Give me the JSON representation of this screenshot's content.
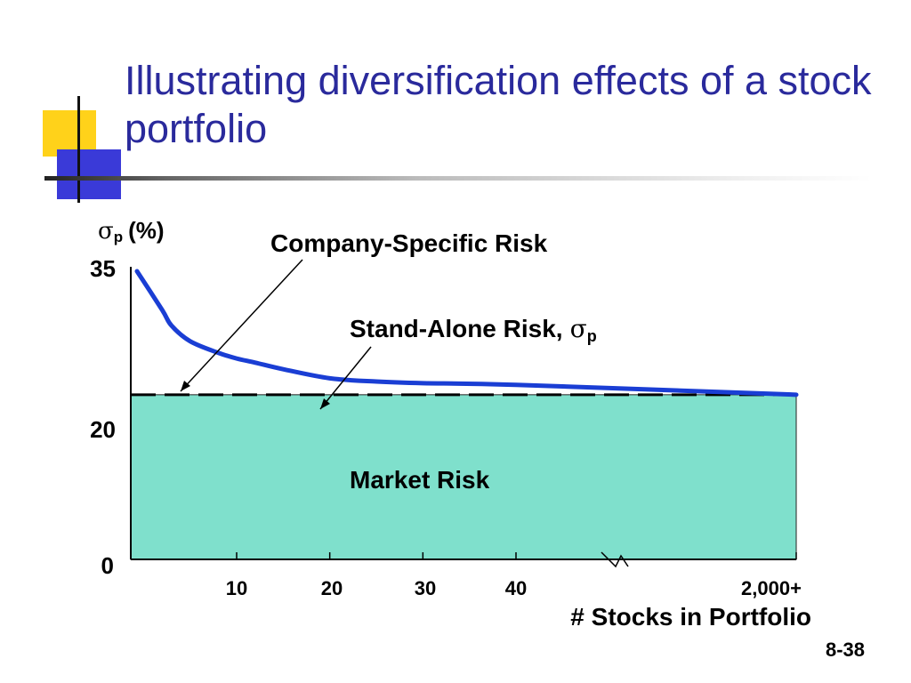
{
  "title": "Illustrating diversification effects of a stock portfolio",
  "slide_number": "8-38",
  "colors": {
    "title": "#2a2a9c",
    "curve": "#1a3ed4",
    "market_fill": "#7fe0cc",
    "logo_yellow": "#ffd21a",
    "logo_blue": "#3a3ad8"
  },
  "chart_data": {
    "type": "line",
    "title": "",
    "ylabel": {
      "symbol": "σ",
      "subscript": "p",
      "suffix": "(%)"
    },
    "xlabel": "# Stocks in Portfolio",
    "y_ticks": [
      "35",
      "20",
      "0"
    ],
    "x_ticks": [
      "10",
      "20",
      "30",
      "40",
      "2,000+"
    ],
    "axis_break": "between 40 and 2,000+",
    "ylim": [
      0,
      35
    ],
    "series": [
      {
        "name": "Stand-Alone Risk, σp",
        "x": [
          1,
          2,
          3,
          5,
          8,
          10,
          12,
          15,
          20,
          25,
          30,
          40,
          2000
        ],
        "values": [
          35,
          30.3,
          28.4,
          26.5,
          25.1,
          24.4,
          23.9,
          23.1,
          22.0,
          21.6,
          21.4,
          21.2,
          20
        ]
      }
    ],
    "market_risk_level": 20,
    "annotations": {
      "company_specific": "Company-Specific Risk",
      "stand_alone": "Stand-Alone Risk,",
      "stand_alone_symbol": "σ",
      "stand_alone_sub": "p",
      "market": "Market Risk"
    }
  }
}
